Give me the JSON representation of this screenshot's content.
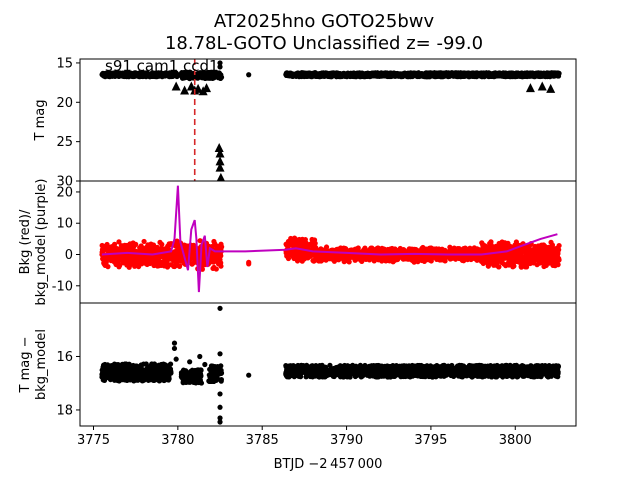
{
  "title_line1": "AT2025hno  GOTO25bwv",
  "title_line2": "18.78L-GOTO Unclassified z= -99.0",
  "panel_annotation": "s91 cam1 ccd1",
  "xlabel": "BTJD −2 457 000",
  "colors": {
    "bkg": "#ff0000",
    "model": "#bf00bf",
    "points": "#000000",
    "marker_line": "#d62728"
  },
  "chart_data": [
    {
      "type": "scatter",
      "name": "panel-lightcurve",
      "ylabel": "T mag",
      "xlim": [
        3774.2,
        3803.6
      ],
      "ylim": [
        30,
        14.5
      ],
      "inverted_y": true,
      "yticks": [
        15,
        20,
        25,
        30
      ],
      "vline_x": 3781.0,
      "clusters": [
        {
          "x0": 3775.5,
          "x1": 3780.0,
          "y": 16.5,
          "spread": 0.25
        },
        {
          "x0": 3780.2,
          "x1": 3782.6,
          "y": 16.6,
          "spread": 0.4
        },
        {
          "x0": 3786.4,
          "x1": 3802.6,
          "y": 16.5,
          "spread": 0.25
        }
      ],
      "upper_limits": [
        {
          "x": 3779.9,
          "y": 18.0
        },
        {
          "x": 3780.4,
          "y": 18.5
        },
        {
          "x": 3780.8,
          "y": 18.0
        },
        {
          "x": 3781.0,
          "y": 18.5
        },
        {
          "x": 3781.2,
          "y": 18.3
        },
        {
          "x": 3781.5,
          "y": 18.6
        },
        {
          "x": 3781.7,
          "y": 18.2
        },
        {
          "x": 3782.5,
          "y": 26.5
        },
        {
          "x": 3782.5,
          "y": 27.5
        },
        {
          "x": 3782.5,
          "y": 28.3
        },
        {
          "x": 3782.55,
          "y": 29.6
        },
        {
          "x": 3782.45,
          "y": 25.8
        },
        {
          "x": 3782.5,
          "y": 30.0
        },
        {
          "x": 3800.9,
          "y": 18.2
        },
        {
          "x": 3801.6,
          "y": 18.0
        },
        {
          "x": 3802.1,
          "y": 18.3
        }
      ],
      "isolated_points": [
        {
          "x": 3782.5,
          "y": 15.0
        },
        {
          "x": 3782.5,
          "y": 15.5
        },
        {
          "x": 3784.2,
          "y": 16.5
        }
      ]
    },
    {
      "type": "line",
      "name": "panel-background",
      "ylabel": "Bkg (red)/\nbkg_model (purple)",
      "xlim": [
        3774.2,
        3803.6
      ],
      "ylim": [
        -15.5,
        23.5
      ],
      "yticks": [
        -10,
        0,
        10,
        20
      ],
      "model_x": [
        3775.5,
        3777.0,
        3778.5,
        3779.6,
        3779.8,
        3780.0,
        3780.15,
        3780.3,
        3780.6,
        3780.8,
        3781.0,
        3781.1,
        3781.25,
        3781.4,
        3781.6,
        3781.75,
        3781.9,
        3782.2,
        3782.6,
        3784.0,
        3786.4,
        3787.0,
        3788.0,
        3790.0,
        3792.0,
        3794.0,
        3796.0,
        3798.0,
        3799.5,
        3800.5,
        3801.5,
        3802.5
      ],
      "model_y": [
        0,
        0.5,
        0,
        1,
        5,
        22,
        4,
        1,
        -5,
        8,
        11,
        5,
        -12,
        3,
        6,
        -4,
        2,
        1,
        1,
        1,
        1.5,
        2,
        1,
        0.5,
        0,
        0.2,
        0,
        0,
        1,
        3,
        5,
        6.5
      ],
      "bkg_clusters": [
        {
          "x0": 3775.5,
          "x1": 3779.6,
          "center": 0,
          "spread": 4.5
        },
        {
          "x0": 3779.7,
          "x1": 3782.6,
          "center": 0,
          "spread": 5
        },
        {
          "x0": 3786.4,
          "x1": 3788.2,
          "center": 1.5,
          "spread": 4
        },
        {
          "x0": 3788.2,
          "x1": 3798.0,
          "center": 0,
          "spread": 2.5
        },
        {
          "x0": 3798.0,
          "x1": 3802.6,
          "center": 0,
          "spread": 4.5
        }
      ],
      "bkg_isolated": [
        {
          "x": 3784.2,
          "y": -2.5
        },
        {
          "x": 3784.2,
          "y": -3
        }
      ]
    },
    {
      "type": "scatter",
      "name": "panel-corrected",
      "ylabel": "T mag −\nbkg_model",
      "xlim": [
        3774.2,
        3803.6
      ],
      "ylim": [
        18.6,
        14.0
      ],
      "inverted_y": true,
      "yticks": [
        16,
        18
      ],
      "xticks": [
        3775,
        3780,
        3785,
        3790,
        3795,
        3800
      ],
      "clusters": [
        {
          "x0": 3775.5,
          "x1": 3779.6,
          "y": 16.6,
          "spread": 0.32
        },
        {
          "x0": 3780.2,
          "x1": 3781.4,
          "y": 16.75,
          "spread": 0.25
        },
        {
          "x0": 3781.8,
          "x1": 3782.6,
          "y": 16.65,
          "spread": 0.3
        },
        {
          "x0": 3786.4,
          "x1": 3802.6,
          "y": 16.55,
          "spread": 0.22
        }
      ],
      "isolated_points": [
        {
          "x": 3779.8,
          "y": 15.5
        },
        {
          "x": 3779.8,
          "y": 15.7
        },
        {
          "x": 3779.9,
          "y": 16.1
        },
        {
          "x": 3780.7,
          "y": 16.2
        },
        {
          "x": 3781.3,
          "y": 16.0
        },
        {
          "x": 3781.6,
          "y": 16.3
        },
        {
          "x": 3782.5,
          "y": 14.2
        },
        {
          "x": 3782.5,
          "y": 15.9
        },
        {
          "x": 3782.5,
          "y": 17.4
        },
        {
          "x": 3782.5,
          "y": 17.9
        },
        {
          "x": 3782.5,
          "y": 18.3
        },
        {
          "x": 3782.5,
          "y": 18.45
        },
        {
          "x": 3784.2,
          "y": 16.7
        }
      ]
    }
  ]
}
